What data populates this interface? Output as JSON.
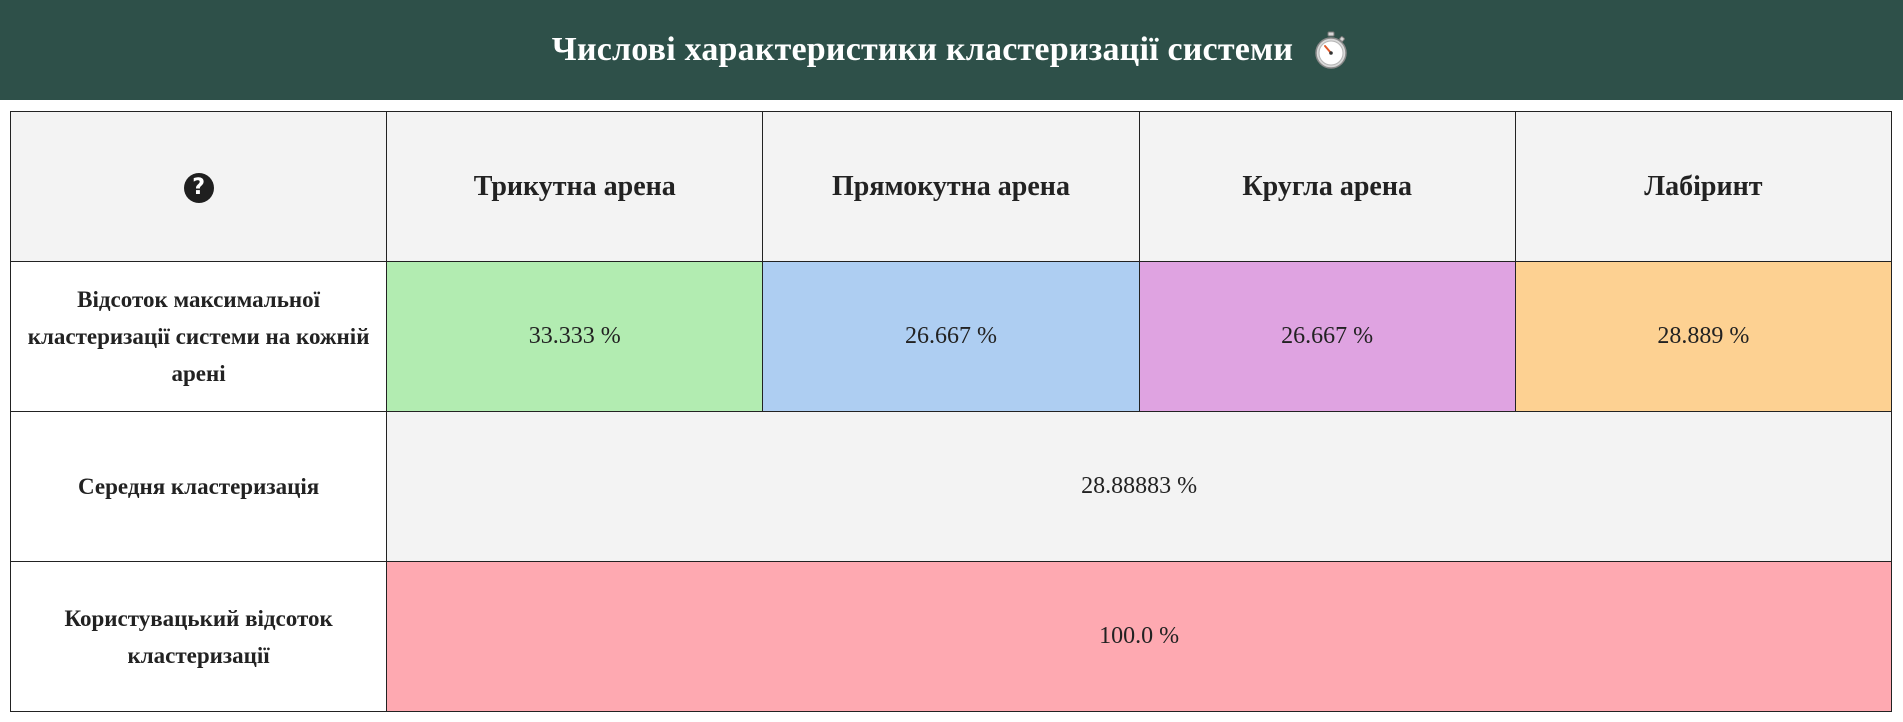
{
  "header": {
    "title": "Числові характеристики кластеризації системи",
    "icon": "stopwatch-icon"
  },
  "table": {
    "corner_icon": "question-circle-icon",
    "corner_glyph": "?",
    "columns": [
      "Трикутна арена",
      "Прямокутна арена",
      "Кругла арена",
      "Лабіринт"
    ],
    "rows": {
      "max_clusterization": {
        "label": "Відсоток максимальної кластеризації системи на кожній арені",
        "values": [
          "33.333 %",
          "26.667 %",
          "26.667 %",
          "28.889 %"
        ],
        "colors": [
          "#b2ecb1",
          "#aecef2",
          "#dfa3e1",
          "#fdd192"
        ]
      },
      "average": {
        "label": "Середня кластеризація",
        "value": "28.88883 %"
      },
      "user": {
        "label": "Користувацький відсоток кластеризації",
        "value": "100.0 %",
        "color": "#fea9b1"
      }
    }
  },
  "colors": {
    "header_bg": "#2e5049",
    "header_cell_bg": "#f3f3f3"
  }
}
